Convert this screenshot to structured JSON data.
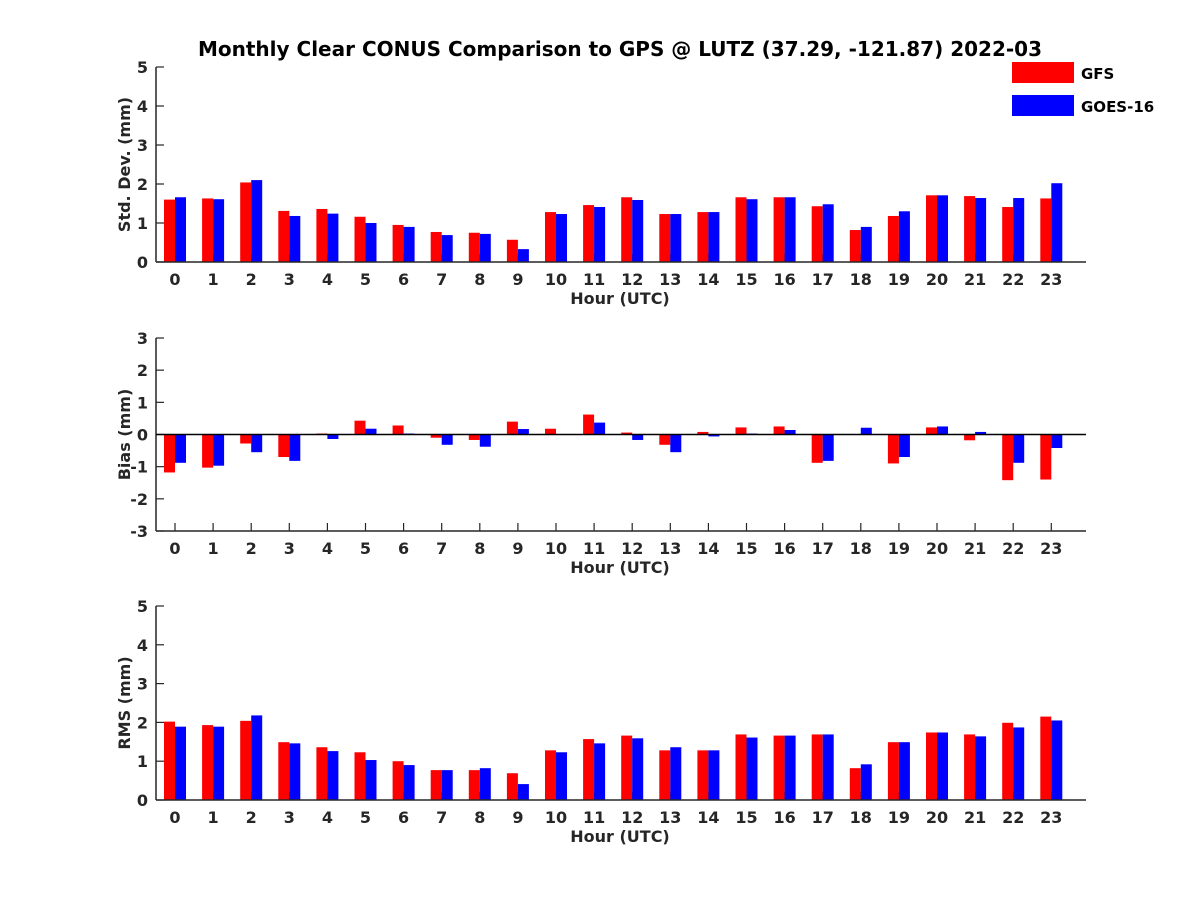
{
  "figure": {
    "title": "Monthly Clear CONUS Comparison to GPS @ LUTZ (37.29, -121.87) 2022-03"
  },
  "legend": [
    {
      "label": "GFS",
      "color": "#ff0000"
    },
    {
      "label": "GOES-16",
      "color": "#0000ff"
    }
  ],
  "chart_data": [
    {
      "type": "bar",
      "xlabel": "Hour (UTC)",
      "ylabel": "Std. Dev. (mm)",
      "ylim": [
        0,
        5
      ],
      "yticks": [
        "0",
        "1",
        "2",
        "3",
        "4",
        "5"
      ],
      "categories": [
        "0",
        "1",
        "2",
        "3",
        "4",
        "5",
        "6",
        "7",
        "8",
        "9",
        "10",
        "11",
        "12",
        "13",
        "14",
        "15",
        "16",
        "17",
        "18",
        "19",
        "20",
        "21",
        "22",
        "23"
      ],
      "series": [
        {
          "name": "GFS",
          "color": "#ff0000",
          "values": [
            1.6,
            1.63,
            2.04,
            1.31,
            1.36,
            1.16,
            0.95,
            0.77,
            0.75,
            0.57,
            1.28,
            1.46,
            1.66,
            1.23,
            1.28,
            1.66,
            1.66,
            1.43,
            0.82,
            1.18,
            1.71,
            1.69,
            1.41,
            1.63
          ]
        },
        {
          "name": "GOES-16",
          "color": "#0000ff",
          "values": [
            1.66,
            1.61,
            2.1,
            1.18,
            1.24,
            1.0,
            0.9,
            0.69,
            0.72,
            0.33,
            1.23,
            1.41,
            1.59,
            1.23,
            1.28,
            1.61,
            1.66,
            1.48,
            0.9,
            1.3,
            1.71,
            1.64,
            1.64,
            2.02
          ]
        }
      ],
      "zero_line": false
    },
    {
      "type": "bar",
      "xlabel": "Hour (UTC)",
      "ylabel": "Bias (mm)",
      "ylim": [
        -3,
        3
      ],
      "yticks": [
        "-3",
        "-2",
        "-1",
        "0",
        "1",
        "2",
        "3"
      ],
      "categories": [
        "0",
        "1",
        "2",
        "3",
        "4",
        "5",
        "6",
        "7",
        "8",
        "9",
        "10",
        "11",
        "12",
        "13",
        "14",
        "15",
        "16",
        "17",
        "18",
        "19",
        "20",
        "21",
        "22",
        "23"
      ],
      "series": [
        {
          "name": "GFS",
          "color": "#ff0000",
          "values": [
            -1.18,
            -1.03,
            -0.28,
            -0.7,
            0.03,
            0.43,
            0.28,
            -0.1,
            -0.17,
            0.4,
            0.18,
            0.62,
            0.06,
            -0.32,
            0.08,
            0.22,
            0.25,
            -0.88,
            0.0,
            -0.9,
            0.22,
            -0.18,
            -1.42,
            -1.4
          ]
        },
        {
          "name": "GOES-16",
          "color": "#0000ff",
          "values": [
            -0.88,
            -0.97,
            -0.55,
            -0.82,
            -0.14,
            0.18,
            0.03,
            -0.32,
            -0.38,
            0.17,
            0.0,
            0.37,
            -0.17,
            -0.55,
            -0.06,
            0.03,
            0.14,
            -0.82,
            0.21,
            -0.7,
            0.25,
            0.08,
            -0.88,
            -0.42
          ]
        }
      ],
      "zero_line": true
    },
    {
      "type": "bar",
      "xlabel": "Hour (UTC)",
      "ylabel": "RMS (mm)",
      "ylim": [
        0,
        5
      ],
      "yticks": [
        "0",
        "1",
        "2",
        "3",
        "4",
        "5"
      ],
      "categories": [
        "0",
        "1",
        "2",
        "3",
        "4",
        "5",
        "6",
        "7",
        "8",
        "9",
        "10",
        "11",
        "12",
        "13",
        "14",
        "15",
        "16",
        "17",
        "18",
        "19",
        "20",
        "21",
        "22",
        "23"
      ],
      "series": [
        {
          "name": "GFS",
          "color": "#ff0000",
          "values": [
            2.02,
            1.93,
            2.04,
            1.49,
            1.36,
            1.23,
            1.0,
            0.77,
            0.77,
            0.69,
            1.28,
            1.57,
            1.66,
            1.28,
            1.28,
            1.69,
            1.66,
            1.69,
            0.82,
            1.49,
            1.74,
            1.69,
            1.99,
            2.15
          ]
        },
        {
          "name": "GOES-16",
          "color": "#0000ff",
          "values": [
            1.89,
            1.89,
            2.18,
            1.46,
            1.26,
            1.03,
            0.9,
            0.77,
            0.82,
            0.41,
            1.23,
            1.46,
            1.59,
            1.36,
            1.28,
            1.61,
            1.66,
            1.69,
            0.92,
            1.49,
            1.74,
            1.64,
            1.87,
            2.05
          ]
        }
      ],
      "zero_line": false
    }
  ]
}
